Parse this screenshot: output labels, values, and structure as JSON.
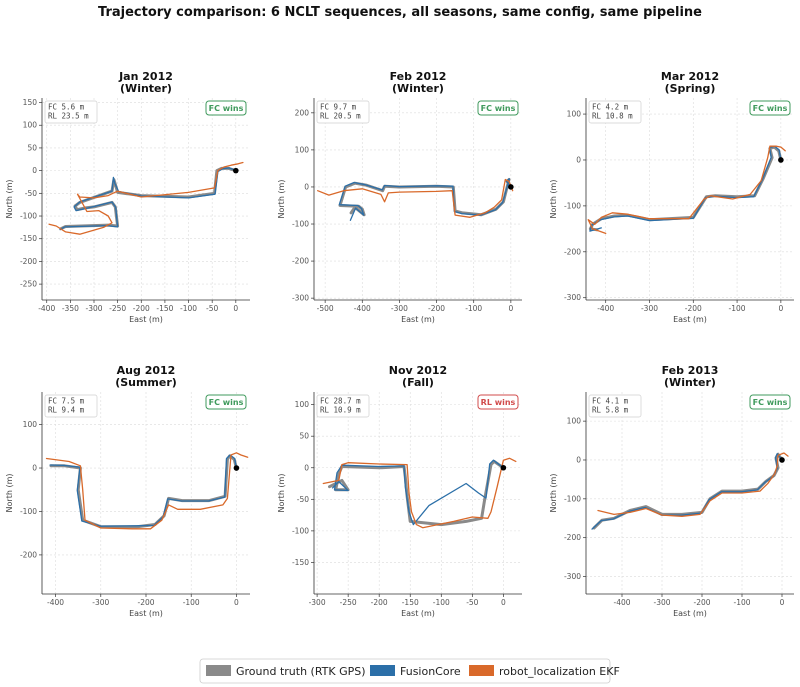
{
  "figure_title": "Trajectory comparison: 6 NCLT sequences, all seasons, same config, same pipeline",
  "colors": {
    "ground_truth": "#8a8a8a",
    "fusioncore": "#2b6fa8",
    "ekf": "#d9692a",
    "fc_win": "#3f9a5c",
    "rl_win": "#d14b4b"
  },
  "legend": [
    {
      "key": "ground_truth",
      "label": "Ground truth (RTK GPS)"
    },
    {
      "key": "fusioncore",
      "label": "FusionCore"
    },
    {
      "key": "ekf",
      "label": "robot_localization EKF"
    }
  ],
  "chart_data": [
    {
      "type": "line",
      "title": "Jan 2012\n(Winter)",
      "xlabel": "East (m)",
      "ylabel": "North (m)",
      "xlim": [
        -410,
        30
      ],
      "ylim": [
        -285,
        160
      ],
      "xticks": [
        -400,
        -350,
        -300,
        -250,
        -200,
        -150,
        -100,
        -50,
        0
      ],
      "yticks": [
        150,
        100,
        50,
        0,
        -50,
        -100,
        -150,
        -200,
        -250
      ],
      "stats": [
        "FC  5.6 m",
        "RL  23.5 m"
      ],
      "badge": "FC wins",
      "winner": "fc",
      "series": [
        {
          "key": "ground_truth",
          "x": [
            0,
            -15,
            -30,
            -40,
            -45,
            -100,
            -200,
            -250,
            -255,
            -258,
            -262,
            -330,
            -340,
            -336,
            -318,
            -300,
            -262,
            -255,
            -250,
            -270,
            -360,
            -370
          ],
          "y": [
            0,
            5,
            5,
            0,
            -50,
            -58,
            -55,
            -48,
            -30,
            -20,
            -45,
            -70,
            -78,
            -86,
            -82,
            -80,
            -70,
            -80,
            -122,
            -120,
            -123,
            -128
          ]
        },
        {
          "key": "fusioncore",
          "x": [
            0,
            -14,
            -28,
            -38,
            -44,
            -100,
            -200,
            -248,
            -256,
            -259,
            -262,
            -330,
            -342,
            -338,
            -320,
            -300,
            -262,
            -254,
            -250,
            -272,
            -362,
            -372
          ],
          "y": [
            0,
            6,
            4,
            -2,
            -52,
            -60,
            -56,
            -46,
            -28,
            -15,
            -45,
            -69,
            -80,
            -88,
            -84,
            -79,
            -69,
            -81,
            -124,
            -121,
            -124,
            -130
          ]
        },
        {
          "key": "ekf",
          "x": [
            15,
            5,
            -10,
            -25,
            -38,
            -45,
            -100,
            -200,
            -250,
            -260,
            -270,
            -300,
            -330,
            -335,
            -315,
            -290,
            -270,
            -262,
            -280,
            -330,
            -360,
            -380,
            -395
          ],
          "y": [
            18,
            15,
            12,
            8,
            0,
            -38,
            -48,
            -58,
            -45,
            -50,
            -55,
            -60,
            -58,
            -52,
            -90,
            -88,
            -100,
            -115,
            -125,
            -140,
            -135,
            -122,
            -118
          ]
        }
      ]
    },
    {
      "type": "line",
      "title": "Feb 2012\n(Winter)",
      "xlabel": "East (m)",
      "ylabel": "North (m)",
      "xlim": [
        -530,
        30
      ],
      "ylim": [
        -305,
        240
      ],
      "xticks": [
        -500,
        -400,
        -300,
        -200,
        -100,
        0
      ],
      "yticks": [
        200,
        100,
        0,
        -100,
        -200,
        -300
      ],
      "stats": [
        "FC  9.7 m",
        "RL  20.5 m"
      ],
      "badge": "FC wins",
      "winner": "fc",
      "series": [
        {
          "key": "ground_truth",
          "x": [
            0,
            -10,
            -5,
            -20,
            -40,
            -80,
            -130,
            -150,
            -155,
            -200,
            -300,
            -340,
            -345,
            -390,
            -420,
            -445,
            -460,
            -410,
            -400,
            -395,
            -420,
            -430
          ],
          "y": [
            0,
            15,
            20,
            -40,
            -60,
            -75,
            -70,
            -65,
            0,
            2,
            0,
            2,
            -10,
            5,
            10,
            0,
            -50,
            -52,
            -60,
            -75,
            -55,
            -70
          ]
        },
        {
          "key": "fusioncore",
          "x": [
            0,
            -12,
            -4,
            -22,
            -42,
            -82,
            -132,
            -152,
            -156,
            -200,
            -300,
            -340,
            -346,
            -392,
            -422,
            -446,
            -462,
            -412,
            -402,
            -396,
            -418,
            -432
          ],
          "y": [
            0,
            16,
            22,
            -42,
            -62,
            -76,
            -72,
            -66,
            2,
            3,
            1,
            4,
            -8,
            6,
            12,
            2,
            -48,
            -50,
            -58,
            -76,
            -57,
            -90
          ]
        },
        {
          "key": "ekf",
          "x": [
            5,
            -5,
            -15,
            -25,
            -45,
            -70,
            -110,
            -150,
            -158,
            -200,
            -300,
            -330,
            -340,
            -350,
            -400,
            -450,
            -490,
            -520
          ],
          "y": [
            -10,
            15,
            20,
            -35,
            -55,
            -70,
            -82,
            -76,
            -10,
            -12,
            -14,
            -16,
            -40,
            -20,
            -5,
            -10,
            -22,
            -10
          ]
        }
      ]
    },
    {
      "type": "line",
      "title": "Mar 2012\n(Spring)",
      "xlabel": "East (m)",
      "ylabel": "North (m)",
      "xlim": [
        -445,
        30
      ],
      "ylim": [
        -305,
        135
      ],
      "xticks": [
        -400,
        -300,
        -200,
        -100,
        0
      ],
      "yticks": [
        100,
        0,
        -100,
        -200,
        -300
      ],
      "stats": [
        "FC  4.2 m",
        "RL  10.8 m"
      ],
      "badge": "FC wins",
      "winner": "fc",
      "series": [
        {
          "key": "ground_truth",
          "x": [
            0,
            -5,
            -15,
            -25,
            -20,
            -40,
            -60,
            -100,
            -150,
            -170,
            -200,
            -300,
            -350,
            -380,
            -410,
            -430,
            -435,
            -420
          ],
          "y": [
            0,
            20,
            28,
            25,
            5,
            -40,
            -78,
            -80,
            -78,
            -80,
            -125,
            -130,
            -120,
            -122,
            -128,
            -140,
            -150,
            -152
          ]
        },
        {
          "key": "fusioncore",
          "x": [
            0,
            -4,
            -14,
            -26,
            -22,
            -42,
            -62,
            -100,
            -150,
            -172,
            -200,
            -300,
            -350,
            -382,
            -412,
            -432,
            -436,
            -410
          ],
          "y": [
            0,
            22,
            30,
            27,
            6,
            -42,
            -80,
            -82,
            -79,
            -82,
            -127,
            -132,
            -122,
            -124,
            -130,
            -142,
            -155,
            -148
          ]
        },
        {
          "key": "ekf",
          "x": [
            10,
            0,
            -10,
            -25,
            -30,
            -45,
            -70,
            -110,
            -160,
            -175,
            -210,
            -300,
            -350,
            -385,
            -410,
            -425,
            -440,
            -430,
            -400
          ],
          "y": [
            20,
            28,
            30,
            30,
            5,
            -45,
            -75,
            -85,
            -78,
            -85,
            -128,
            -128,
            -118,
            -115,
            -125,
            -140,
            -130,
            -150,
            -160
          ]
        }
      ]
    },
    {
      "type": "line",
      "title": "Aug 2012\n(Summer)",
      "xlabel": "East (m)",
      "ylabel": "North (m)",
      "xlim": [
        -430,
        30
      ],
      "ylim": [
        -290,
        175
      ],
      "xticks": [
        -400,
        -300,
        -200,
        -100,
        0
      ],
      "yticks": [
        100,
        0,
        -100,
        -200
      ],
      "stats": [
        "FC  7.5 m",
        "RL  9.4 m"
      ],
      "badge": "FC wins",
      "winner": "fc",
      "series": [
        {
          "key": "ground_truth",
          "x": [
            0,
            -5,
            -15,
            -20,
            -25,
            -60,
            -120,
            -150,
            -160,
            -180,
            -220,
            -300,
            -340,
            -350,
            -345,
            -380,
            -410
          ],
          "y": [
            0,
            20,
            28,
            20,
            -65,
            -75,
            -75,
            -70,
            -110,
            -130,
            -135,
            -135,
            -120,
            -50,
            0,
            5,
            5
          ]
        },
        {
          "key": "fusioncore",
          "x": [
            0,
            -4,
            -14,
            -22,
            -26,
            -62,
            -122,
            -152,
            -162,
            -182,
            -222,
            -300,
            -342,
            -352,
            -346,
            -382,
            -412
          ],
          "y": [
            0,
            22,
            30,
            22,
            -67,
            -76,
            -76,
            -71,
            -112,
            -132,
            -133,
            -134,
            -122,
            -52,
            2,
            6,
            7
          ]
        },
        {
          "key": "ekf",
          "x": [
            25,
            10,
            0,
            -12,
            -20,
            -30,
            -80,
            -130,
            -150,
            -165,
            -190,
            -230,
            -300,
            -335,
            -340,
            -345,
            -370,
            -420
          ],
          "y": [
            25,
            30,
            35,
            30,
            -70,
            -85,
            -95,
            -95,
            -85,
            -120,
            -140,
            -140,
            -138,
            -120,
            -50,
            5,
            15,
            22
          ]
        }
      ]
    },
    {
      "type": "line",
      "title": "Nov 2012\n(Fall)",
      "xlabel": "East (m)",
      "ylabel": "North (m)",
      "xlim": [
        -305,
        30
      ],
      "ylim": [
        -200,
        120
      ],
      "xticks": [
        -300,
        -250,
        -200,
        -150,
        -100,
        -50,
        0
      ],
      "yticks": [
        100,
        50,
        0,
        -50,
        -100,
        -150
      ],
      "stats": [
        "FC  28.7 m",
        "RL  10.9 m"
      ],
      "badge": "RL wins",
      "winner": "rl",
      "series": [
        {
          "key": "ground_truth",
          "x": [
            0,
            -15,
            -20,
            -30,
            -35,
            -60,
            -100,
            -150,
            -155,
            -158,
            -160,
            -200,
            -260,
            -265,
            -270,
            -250,
            -260,
            -280
          ],
          "y": [
            0,
            10,
            5,
            -50,
            -80,
            -85,
            -90,
            -85,
            -45,
            -15,
            2,
            0,
            2,
            -10,
            -35,
            -35,
            -20,
            -30
          ]
        },
        {
          "key": "fusioncore",
          "x": [
            0,
            -16,
            -22,
            -28,
            -40,
            -60,
            -120,
            -145,
            -152,
            -158,
            -160,
            -200,
            -260,
            -268,
            -272,
            -250,
            -265,
            -275
          ],
          "y": [
            0,
            12,
            6,
            -48,
            -40,
            -25,
            -60,
            -90,
            -70,
            -30,
            3,
            2,
            4,
            -8,
            -35,
            -36,
            -22,
            -32
          ]
        },
        {
          "key": "ekf",
          "x": [
            20,
            10,
            0,
            -10,
            -20,
            -25,
            -50,
            -80,
            -130,
            -140,
            -148,
            -152,
            -155,
            -200,
            -250,
            -260,
            -265,
            -290
          ],
          "y": [
            10,
            15,
            12,
            -30,
            -70,
            -80,
            -78,
            -85,
            -95,
            -90,
            -70,
            -40,
            5,
            6,
            8,
            5,
            -20,
            -25
          ]
        }
      ]
    },
    {
      "type": "line",
      "title": "Feb 2013\n(Winter)",
      "xlabel": "East (m)",
      "ylabel": "North (m)",
      "xlim": [
        -490,
        30
      ],
      "ylim": [
        -345,
        175
      ],
      "xticks": [
        -400,
        -300,
        -200,
        -100,
        0
      ],
      "yticks": [
        100,
        0,
        -100,
        -200,
        -300
      ],
      "stats": [
        "FC  4.1 m",
        "RL  5.8 m"
      ],
      "badge": "FC wins",
      "winner": "fc",
      "series": [
        {
          "key": "ground_truth",
          "x": [
            0,
            -10,
            -15,
            -10,
            -20,
            -40,
            -60,
            -100,
            -150,
            -180,
            -200,
            -250,
            -300,
            -340,
            -380,
            -420,
            -450,
            -470
          ],
          "y": [
            0,
            15,
            5,
            -20,
            -40,
            -55,
            -75,
            -80,
            -80,
            -100,
            -135,
            -140,
            -140,
            -120,
            -130,
            -150,
            -155,
            -175
          ]
        },
        {
          "key": "fusioncore",
          "x": [
            0,
            -12,
            -16,
            -12,
            -22,
            -42,
            -62,
            -102,
            -152,
            -182,
            -202,
            -252,
            -302,
            -342,
            -382,
            -422,
            -452,
            -475
          ],
          "y": [
            0,
            16,
            6,
            -22,
            -42,
            -57,
            -77,
            -82,
            -82,
            -102,
            -137,
            -142,
            -142,
            -122,
            -132,
            -152,
            -156,
            -178
          ]
        },
        {
          "key": "ekf",
          "x": [
            15,
            5,
            -10,
            -12,
            -18,
            -35,
            -55,
            -100,
            -150,
            -180,
            -205,
            -250,
            -300,
            -340,
            -380,
            -420,
            -460
          ],
          "y": [
            10,
            18,
            12,
            -15,
            -35,
            -60,
            -80,
            -85,
            -85,
            -105,
            -140,
            -145,
            -142,
            -125,
            -135,
            -140,
            -130
          ]
        }
      ]
    }
  ]
}
